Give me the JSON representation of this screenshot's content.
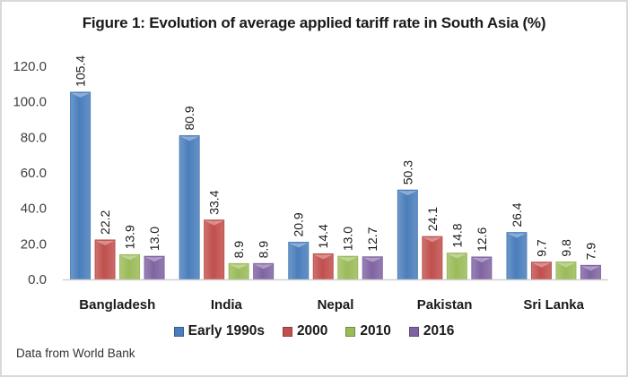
{
  "chart_data": {
    "type": "bar",
    "title": "Figure 1: Evolution of average applied tariff rate in South Asia (%)",
    "xlabel": "",
    "ylabel": "",
    "ylim": [
      0,
      120
    ],
    "yticks": [
      "0.0",
      "20.0",
      "40.0",
      "60.0",
      "80.0",
      "100.0",
      "120.0"
    ],
    "grid": false,
    "legend_position": "bottom",
    "categories": [
      "Bangladesh",
      "India",
      "Nepal",
      "Pakistan",
      "Sri Lanka"
    ],
    "series": [
      {
        "name": "Early 1990s",
        "color": "#4a7ebb",
        "values": [
          105.4,
          80.9,
          20.9,
          50.3,
          26.4
        ]
      },
      {
        "name": "2000",
        "color": "#c0504d",
        "values": [
          22.2,
          33.4,
          14.4,
          24.1,
          9.7
        ]
      },
      {
        "name": "2010",
        "color": "#9bbb59",
        "values": [
          13.9,
          8.9,
          13.0,
          14.8,
          9.8
        ]
      },
      {
        "name": "2016",
        "color": "#8064a2",
        "values": [
          13.0,
          8.9,
          12.7,
          12.6,
          7.9
        ]
      }
    ],
    "source": "Data from World Bank"
  }
}
